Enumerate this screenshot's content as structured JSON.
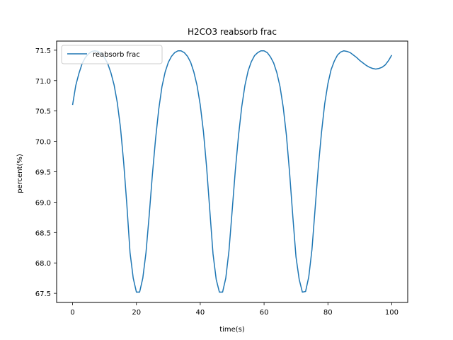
{
  "chart_data": {
    "type": "line",
    "title": "H2CO3 reabsorb frac",
    "xlabel": "time(s)",
    "ylabel": "percent(%)",
    "xlim": [
      -5,
      105
    ],
    "ylim": [
      67.35,
      71.65
    ],
    "xticks": [
      0,
      20,
      40,
      60,
      80,
      100
    ],
    "xtick_labels": [
      "0",
      "20",
      "40",
      "60",
      "80",
      "100"
    ],
    "yticks": [
      67.5,
      68.0,
      68.5,
      69.0,
      69.5,
      70.0,
      70.5,
      71.0,
      71.5
    ],
    "ytick_labels": [
      "67.5",
      "68.0",
      "68.5",
      "69.0",
      "69.5",
      "70.0",
      "70.5",
      "71.0",
      "71.5"
    ],
    "grid": false,
    "legend_position": "top-left",
    "series": [
      {
        "name": "reabsorb frac",
        "color": "#1f77b4",
        "x": [
          0,
          1,
          2,
          3,
          4,
          5,
          6,
          7,
          8,
          9,
          10,
          11,
          12,
          13,
          14,
          15,
          16,
          17,
          18,
          19,
          20,
          21,
          22,
          23,
          24,
          25,
          26,
          27,
          28,
          29,
          30,
          31,
          32,
          33,
          34,
          35,
          36,
          37,
          38,
          39,
          40,
          41,
          42,
          43,
          44,
          45,
          46,
          47,
          48,
          49,
          50,
          51,
          52,
          53,
          54,
          55,
          56,
          57,
          58,
          59,
          60,
          61,
          62,
          63,
          64,
          65,
          66,
          67,
          68,
          69,
          70,
          71,
          72,
          73,
          74,
          75,
          76,
          77,
          78,
          79,
          80,
          81,
          82,
          83,
          84,
          85,
          86,
          87,
          88,
          89,
          90,
          91,
          92,
          93,
          94,
          95,
          96,
          97,
          98,
          99,
          100
        ],
        "y": [
          70.6,
          70.92,
          71.12,
          71.28,
          71.38,
          71.44,
          71.48,
          71.49,
          71.48,
          71.44,
          71.38,
          71.28,
          71.13,
          70.93,
          70.64,
          70.23,
          69.66,
          68.96,
          68.17,
          67.75,
          67.52,
          67.52,
          67.75,
          68.17,
          68.78,
          69.45,
          70.04,
          70.53,
          70.9,
          71.14,
          71.3,
          71.4,
          71.46,
          71.49,
          71.49,
          71.46,
          71.4,
          71.3,
          71.14,
          70.92,
          70.6,
          70.16,
          69.57,
          68.86,
          68.15,
          67.73,
          67.52,
          67.52,
          67.75,
          68.2,
          68.86,
          69.53,
          70.1,
          70.57,
          70.92,
          71.16,
          71.31,
          71.41,
          71.46,
          71.49,
          71.49,
          71.46,
          71.39,
          71.29,
          71.13,
          70.9,
          70.56,
          70.1,
          69.48,
          68.77,
          68.1,
          67.73,
          67.52,
          67.53,
          67.77,
          68.22,
          68.9,
          69.58,
          70.15,
          70.62,
          70.95,
          71.18,
          71.32,
          71.42,
          71.47,
          71.49,
          71.48,
          71.46,
          71.42,
          71.38,
          71.33,
          71.29,
          71.25,
          71.22,
          71.2,
          71.19,
          71.2,
          71.22,
          71.26,
          71.33,
          71.42
        ]
      }
    ]
  }
}
